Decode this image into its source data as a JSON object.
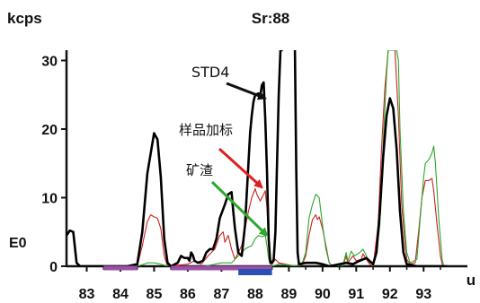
{
  "chart_data": {
    "type": "line",
    "title": "Sr:88",
    "ylabel": "kcps",
    "xlabel": "u",
    "ymarker": "E0",
    "xlim": [
      82.4,
      94.3
    ],
    "ylim": [
      0,
      31.5
    ],
    "y_ticks": [
      0,
      10,
      20,
      30
    ],
    "x_ticks": [
      83,
      84,
      85,
      86,
      87,
      88,
      89,
      90,
      91,
      92,
      93
    ],
    "grid": false,
    "series": [
      {
        "color": "#000000",
        "points": [
          [
            82.4,
            4.5
          ],
          [
            82.5,
            5.2
          ],
          [
            82.6,
            5.0
          ],
          [
            82.7,
            0.5
          ],
          [
            82.8,
            0
          ],
          [
            83.5,
            0
          ],
          [
            84.2,
            0
          ],
          [
            84.5,
            0.3
          ],
          [
            84.65,
            5
          ],
          [
            84.8,
            13.5
          ],
          [
            84.9,
            16.5
          ],
          [
            85.0,
            19.4
          ],
          [
            85.1,
            18.5
          ],
          [
            85.2,
            13
          ],
          [
            85.3,
            4
          ],
          [
            85.4,
            0.5
          ],
          [
            85.5,
            0
          ],
          [
            85.7,
            0.5
          ],
          [
            85.8,
            1.5
          ],
          [
            85.9,
            1.2
          ],
          [
            86.0,
            1.2
          ],
          [
            86.05,
            0.8
          ],
          [
            86.1,
            2.0
          ],
          [
            86.15,
            1.6
          ],
          [
            86.2,
            0.8
          ],
          [
            86.3,
            0.5
          ],
          [
            86.45,
            0.8
          ],
          [
            86.55,
            2.0
          ],
          [
            86.65,
            2.5
          ],
          [
            86.75,
            2.5
          ],
          [
            86.85,
            4
          ],
          [
            86.95,
            7
          ],
          [
            87.1,
            9
          ],
          [
            87.2,
            10.5
          ],
          [
            87.3,
            10.8
          ],
          [
            87.35,
            8
          ],
          [
            87.4,
            5.5
          ],
          [
            87.5,
            2
          ],
          [
            87.6,
            1.5
          ],
          [
            87.7,
            6
          ],
          [
            87.75,
            10.5
          ],
          [
            87.8,
            15
          ],
          [
            87.85,
            19.5
          ],
          [
            87.9,
            22
          ],
          [
            87.95,
            24.0
          ],
          [
            88.0,
            25.0
          ],
          [
            88.1,
            25.2
          ],
          [
            88.15,
            24.8
          ],
          [
            88.2,
            26.4
          ],
          [
            88.25,
            26.8
          ],
          [
            88.3,
            21.5
          ],
          [
            88.35,
            14
          ],
          [
            88.4,
            4
          ],
          [
            88.45,
            0.5
          ],
          [
            88.5,
            0.5
          ],
          [
            88.55,
            1
          ],
          [
            88.6,
            5
          ],
          [
            88.65,
            15
          ],
          [
            88.7,
            25
          ],
          [
            88.75,
            31.5
          ],
          [
            88.82,
            31.5
          ]
        ]
      },
      {
        "color": "#000000",
        "points": [
          [
            89.18,
            31.5
          ],
          [
            89.22,
            14
          ],
          [
            89.26,
            2
          ],
          [
            89.3,
            0.3
          ],
          [
            89.5,
            0.5
          ],
          [
            89.8,
            0.5
          ],
          [
            90.0,
            0.3
          ],
          [
            90.2,
            0
          ],
          [
            90.7,
            0.5
          ],
          [
            90.9,
            0.3
          ],
          [
            91.1,
            0.8
          ],
          [
            91.3,
            1.2
          ],
          [
            91.5,
            0.3
          ],
          [
            91.6,
            2
          ],
          [
            91.7,
            8
          ],
          [
            91.8,
            16
          ],
          [
            91.9,
            22
          ],
          [
            92.0,
            24.5
          ],
          [
            92.1,
            23
          ],
          [
            92.2,
            17
          ],
          [
            92.3,
            8
          ],
          [
            92.4,
            2
          ],
          [
            92.5,
            0.3
          ],
          [
            92.8,
            0
          ],
          [
            93.0,
            0
          ],
          [
            93.5,
            0
          ],
          [
            93.7,
            0
          ]
        ]
      },
      {
        "color": "#c92020",
        "points": [
          [
            84.5,
            0
          ],
          [
            84.65,
            3
          ],
          [
            84.8,
            6.5
          ],
          [
            84.9,
            7.5
          ],
          [
            85.0,
            7.2
          ],
          [
            85.1,
            7.0
          ],
          [
            85.2,
            5.5
          ],
          [
            85.3,
            1.5
          ],
          [
            85.4,
            0
          ],
          [
            86.0,
            0.3
          ],
          [
            86.2,
            0.8
          ],
          [
            86.4,
            0.3
          ],
          [
            86.6,
            1.5
          ],
          [
            86.8,
            2.5
          ],
          [
            86.95,
            4.5
          ],
          [
            87.05,
            5.0
          ],
          [
            87.1,
            3.5
          ],
          [
            87.2,
            4.5
          ],
          [
            87.3,
            2.5
          ],
          [
            87.4,
            1
          ],
          [
            87.6,
            3
          ],
          [
            87.8,
            8
          ],
          [
            87.9,
            10
          ],
          [
            88.0,
            11.3
          ],
          [
            88.05,
            10.5
          ],
          [
            88.15,
            9.5
          ],
          [
            88.25,
            10.5
          ],
          [
            88.3,
            11.0
          ],
          [
            88.35,
            8.5
          ],
          [
            88.4,
            3
          ],
          [
            88.45,
            0.5
          ],
          [
            88.5,
            0.3
          ],
          [
            88.6,
            1
          ],
          [
            88.7,
            0.5
          ],
          [
            89.2,
            0
          ],
          [
            89.3,
            0
          ],
          [
            89.4,
            0.3
          ],
          [
            89.5,
            1.5
          ],
          [
            89.6,
            4.5
          ],
          [
            89.7,
            6.8
          ],
          [
            89.8,
            7.5
          ],
          [
            89.85,
            6.8
          ],
          [
            89.9,
            7.2
          ],
          [
            90.0,
            5.5
          ],
          [
            90.1,
            3
          ],
          [
            90.2,
            0.5
          ],
          [
            90.3,
            0
          ],
          [
            90.6,
            0
          ],
          [
            90.7,
            1.5
          ],
          [
            90.75,
            0.5
          ],
          [
            90.9,
            1.5
          ],
          [
            91.0,
            0.8
          ],
          [
            91.15,
            1.0
          ],
          [
            91.2,
            1.8
          ],
          [
            91.3,
            1.0
          ],
          [
            91.4,
            0.3
          ],
          [
            91.5,
            0
          ],
          [
            91.65,
            6
          ],
          [
            91.75,
            17
          ],
          [
            91.85,
            26
          ],
          [
            91.95,
            31.5
          ],
          [
            92.15,
            31.5
          ],
          [
            92.25,
            22
          ],
          [
            92.35,
            9
          ],
          [
            92.45,
            3
          ],
          [
            92.5,
            1
          ],
          [
            92.6,
            0.3
          ],
          [
            92.75,
            0.5
          ],
          [
            92.85,
            5
          ],
          [
            92.95,
            10
          ],
          [
            93.05,
            12.5
          ],
          [
            93.15,
            12.5
          ],
          [
            93.25,
            12.8
          ],
          [
            93.3,
            11
          ],
          [
            93.4,
            6
          ],
          [
            93.5,
            1.5
          ],
          [
            93.55,
            0.3
          ],
          [
            93.6,
            0
          ]
        ]
      },
      {
        "color": "#2ca82c",
        "points": [
          [
            84.5,
            0
          ],
          [
            84.7,
            0.3
          ],
          [
            84.8,
            0.5
          ],
          [
            85.0,
            0.5
          ],
          [
            85.2,
            0.3
          ],
          [
            85.4,
            0
          ],
          [
            86.0,
            0
          ],
          [
            86.5,
            0
          ],
          [
            86.8,
            0.3
          ],
          [
            87.0,
            0.5
          ],
          [
            87.3,
            0.5
          ],
          [
            87.5,
            1.5
          ],
          [
            87.7,
            2.5
          ],
          [
            87.8,
            2.8
          ],
          [
            87.9,
            3
          ],
          [
            88.0,
            4
          ],
          [
            88.1,
            4.5
          ],
          [
            88.2,
            4.3
          ],
          [
            88.3,
            4.5
          ],
          [
            88.35,
            3
          ],
          [
            88.4,
            1
          ],
          [
            88.5,
            0
          ],
          [
            88.7,
            0.3
          ],
          [
            89.3,
            0
          ],
          [
            89.4,
            0.5
          ],
          [
            89.5,
            2
          ],
          [
            89.6,
            7
          ],
          [
            89.7,
            9
          ],
          [
            89.8,
            10.5
          ],
          [
            89.9,
            10
          ],
          [
            90.0,
            6
          ],
          [
            90.1,
            2.5
          ],
          [
            90.2,
            0.5
          ],
          [
            90.3,
            0
          ],
          [
            90.6,
            0
          ],
          [
            90.7,
            2.0
          ],
          [
            90.75,
            0.8
          ],
          [
            90.85,
            2.2
          ],
          [
            90.95,
            1.5
          ],
          [
            91.1,
            2.0
          ],
          [
            91.2,
            2.5
          ],
          [
            91.3,
            1.5
          ],
          [
            91.4,
            0.5
          ],
          [
            91.5,
            0.5
          ],
          [
            91.6,
            2
          ],
          [
            91.7,
            6
          ],
          [
            91.8,
            18
          ],
          [
            91.9,
            28
          ],
          [
            91.95,
            31.5
          ],
          [
            92.2,
            31.5
          ],
          [
            92.25,
            30
          ],
          [
            92.3,
            20
          ],
          [
            92.4,
            8
          ],
          [
            92.5,
            2
          ],
          [
            92.6,
            0.5
          ],
          [
            92.8,
            1
          ],
          [
            92.9,
            7
          ],
          [
            93.0,
            13
          ],
          [
            93.05,
            15
          ],
          [
            93.15,
            15.5
          ],
          [
            93.25,
            16.5
          ],
          [
            93.3,
            17.5
          ],
          [
            93.35,
            15
          ],
          [
            93.45,
            7
          ],
          [
            93.55,
            1
          ],
          [
            93.6,
            0
          ]
        ]
      }
    ],
    "range_bars": [
      {
        "color": "#9b4fa6",
        "x": [
          83.5,
          84.5
        ]
      },
      {
        "color": "#9b4fa6",
        "x": [
          85.5,
          88.5
        ]
      },
      {
        "color": "#2a4fb5",
        "x": [
          87.5,
          88.5
        ]
      }
    ],
    "annotations": [
      {
        "text": "STD4",
        "color": "#111111",
        "arrow_color": "#111111",
        "arrow_to": [
          88.3,
          24.5
        ]
      },
      {
        "text": "样品加标",
        "color": "#111111",
        "arrow_color": "#e02020",
        "arrow_to": [
          88.2,
          11.5
        ]
      },
      {
        "text": "矿渣",
        "color": "#111111",
        "arrow_color": "#2ca82c",
        "arrow_to": [
          88.35,
          4.5
        ]
      }
    ]
  }
}
